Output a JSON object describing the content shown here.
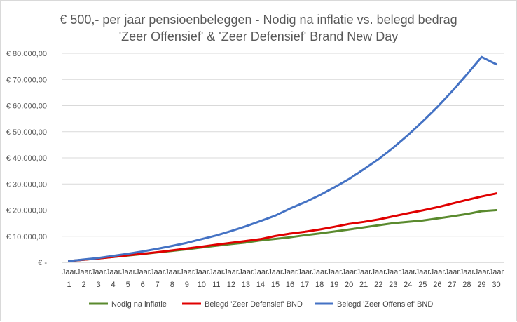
{
  "chart_data": {
    "type": "line",
    "title_line1": "€ 500,- per jaar pensioenbeleggen - Nodig na inflatie vs. belegd bedrag",
    "title_line2": "'Zeer Offensief' & 'Zeer Defensief' Brand New Day",
    "xlabel": "",
    "ylabel": "",
    "ylim": [
      0,
      80000
    ],
    "ytick_values": [
      0,
      10000,
      20000,
      30000,
      40000,
      50000,
      60000,
      70000,
      80000
    ],
    "ytick_labels": [
      "€ -",
      "€ 10.000,00",
      "€ 20.000,00",
      "€ 30.000,00",
      "€ 40.000,00",
      "€ 50.000,00",
      "€ 60.000,00",
      "€ 70.000,00",
      "€ 80.000,00"
    ],
    "x_prefix": "Jaar",
    "categories": [
      "1",
      "2",
      "3",
      "4",
      "5",
      "6",
      "7",
      "8",
      "9",
      "10",
      "11",
      "12",
      "13",
      "14",
      "15",
      "16",
      "17",
      "18",
      "19",
      "20",
      "21",
      "22",
      "23",
      "24",
      "25",
      "26",
      "27",
      "28",
      "29",
      "30"
    ],
    "grid": true,
    "legend_position": "bottom",
    "series": [
      {
        "name": "Nodig na inflatie",
        "color": "#5a8a2e",
        "values": [
          500,
          1000,
          1500,
          2100,
          2600,
          3200,
          3800,
          4400,
          5000,
          5700,
          6400,
          7000,
          7600,
          8400,
          9000,
          9600,
          10400,
          11100,
          11800,
          12600,
          13400,
          14200,
          15000,
          15500,
          16000,
          16800,
          17600,
          18500,
          19600,
          20000
        ]
      },
      {
        "name": "Belegd 'Zeer Defensief' BND",
        "color": "#e00000",
        "values": [
          500,
          1000,
          1500,
          2100,
          2700,
          3300,
          3900,
          4600,
          5300,
          6000,
          6800,
          7500,
          8200,
          8900,
          10100,
          11000,
          11700,
          12600,
          13600,
          14700,
          15500,
          16400,
          17600,
          18800,
          19900,
          21100,
          22500,
          23900,
          25200,
          26400
        ]
      },
      {
        "name": "Belegd 'Zeer Offensief' BND",
        "color": "#4472c4",
        "values": [
          500,
          1100,
          1700,
          2500,
          3300,
          4200,
          5200,
          6300,
          7500,
          8900,
          10300,
          12000,
          13800,
          15800,
          17900,
          20600,
          23000,
          25700,
          28700,
          31900,
          35600,
          39500,
          43900,
          48700,
          53900,
          59500,
          65500,
          71900,
          78600,
          75800
        ]
      }
    ]
  }
}
